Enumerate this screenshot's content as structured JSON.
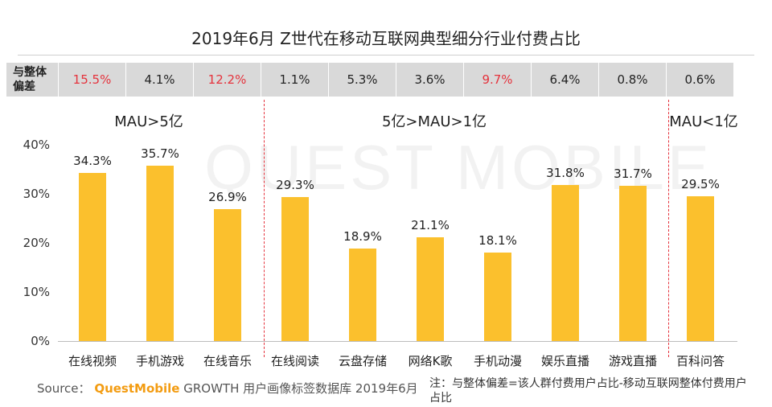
{
  "title": "2019年6月 Z世代在移动互联网典型细分行业付费占比",
  "diff_row": {
    "header_line1": "与整体",
    "header_line2": "偏差",
    "values": [
      "15.5%",
      "4.1%",
      "12.2%",
      "1.1%",
      "5.3%",
      "3.6%",
      "9.7%",
      "6.4%",
      "0.8%",
      "0.6%"
    ],
    "highlight": [
      true,
      false,
      true,
      false,
      false,
      false,
      true,
      false,
      false,
      false
    ]
  },
  "groups": [
    "MAU>5亿",
    "5亿>MAU>1亿",
    "MAU<1亿"
  ],
  "chart_data": {
    "type": "bar",
    "categories": [
      "在线视频",
      "手机游戏",
      "在线音乐",
      "在线阅读",
      "云盘存储",
      "网络K歌",
      "手机动漫",
      "娱乐直播",
      "游戏直播",
      "百科问答"
    ],
    "values": [
      34.3,
      35.7,
      26.9,
      29.3,
      18.9,
      21.1,
      18.1,
      31.8,
      31.7,
      29.5
    ],
    "value_labels": [
      "34.3%",
      "35.7%",
      "26.9%",
      "29.3%",
      "18.9%",
      "21.1%",
      "18.1%",
      "31.8%",
      "31.7%",
      "29.5%"
    ],
    "ylim": [
      0,
      40
    ],
    "yticks": [
      "0%",
      "10%",
      "20%",
      "30%",
      "40%"
    ],
    "title": "2019年6月 Z世代在移动互联网典型细分行业付费占比",
    "xlabel": "",
    "ylabel": "",
    "grid": false,
    "bar_color": "#fbc02d"
  },
  "watermark": "QUEST MOBILE",
  "source": {
    "prefix": "Source：",
    "brand": "QuestMobile",
    "text": "GROWTH 用户画像标签数据库 2019年6月"
  },
  "note": "注：与整体偏差=该人群付费用户占比-移动互联网整体付费用户占比",
  "colors": {
    "bar": "#fbc02d",
    "highlight": "#e5323c",
    "header_bg": "#d9d9d9",
    "separator": "#e5323c"
  }
}
